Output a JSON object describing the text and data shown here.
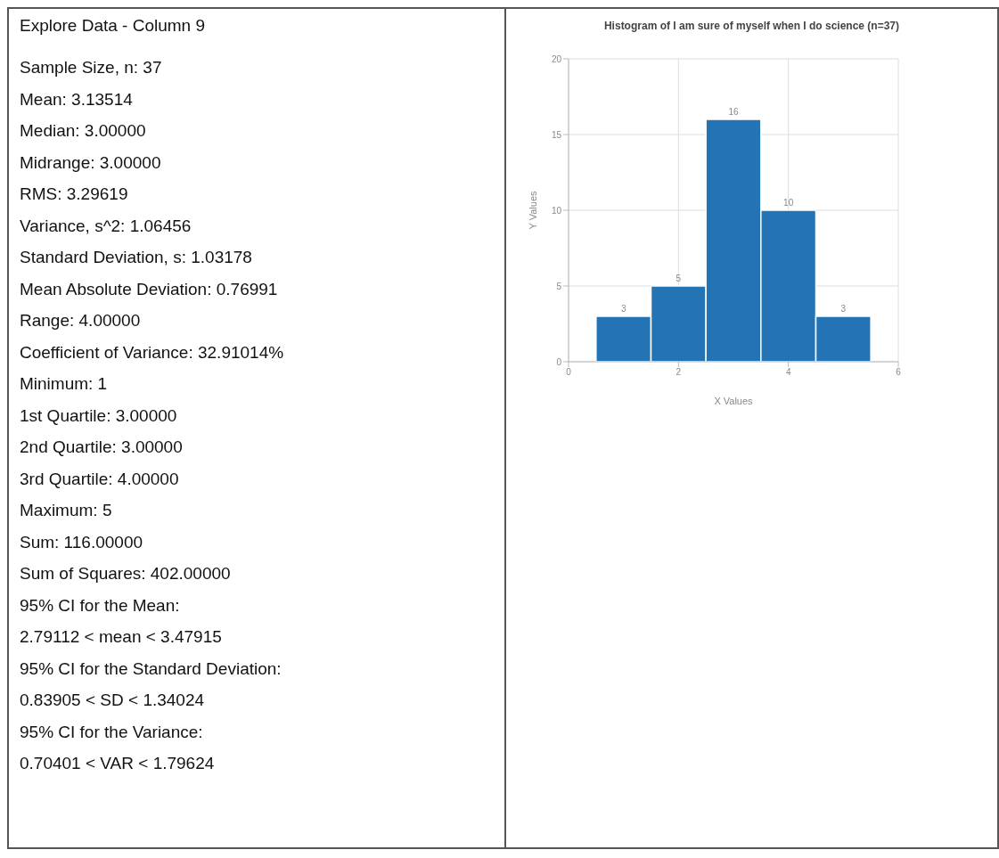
{
  "chart_data": [
    {
      "type": "other",
      "title": "Explore Data - Column 9",
      "annotations": [
        "Sample Size, n: 37",
        "Mean: 3.13514",
        "Median: 3.00000",
        "Midrange: 3.00000",
        "RMS: 3.29619",
        "Variance, s^2: 1.06456",
        "Standard Deviation, s: 1.03178",
        "Mean Absolute Deviation: 0.76991",
        "Range: 4.00000",
        "Coefficient of Variance: 32.91014%",
        "Minimum: 1",
        "1st Quartile: 3.00000",
        "2nd Quartile: 3.00000",
        "3rd Quartile: 4.00000",
        "Maximum: 5",
        "Sum: 116.00000",
        "Sum of Squares: 402.00000",
        "95% CI for the Mean:",
        "2.79112 < mean < 3.47915",
        "95% CI for the Standard Deviation:",
        "0.83905 < SD < 1.34024",
        "95% CI for the Variance:",
        "0.70401 < VAR < 1.79624"
      ]
    },
    {
      "type": "histogram",
      "title": "Histogram of I am sure of myself when I do science (n=37)",
      "xlabel": "X Values",
      "ylabel": "Y Values",
      "bins": [
        0.5,
        1.5,
        2.5,
        3.5,
        4.5,
        5.5
      ],
      "values": [
        3,
        5,
        16,
        10,
        3
      ],
      "color": "#2474b5",
      "xlim": [
        0,
        6
      ],
      "xticks": [
        0,
        2,
        4,
        6
      ],
      "ylim": [
        0,
        20
      ],
      "yticks": [
        0,
        5,
        10,
        15,
        20
      ],
      "grid": true,
      "data_labels": true
    }
  ]
}
